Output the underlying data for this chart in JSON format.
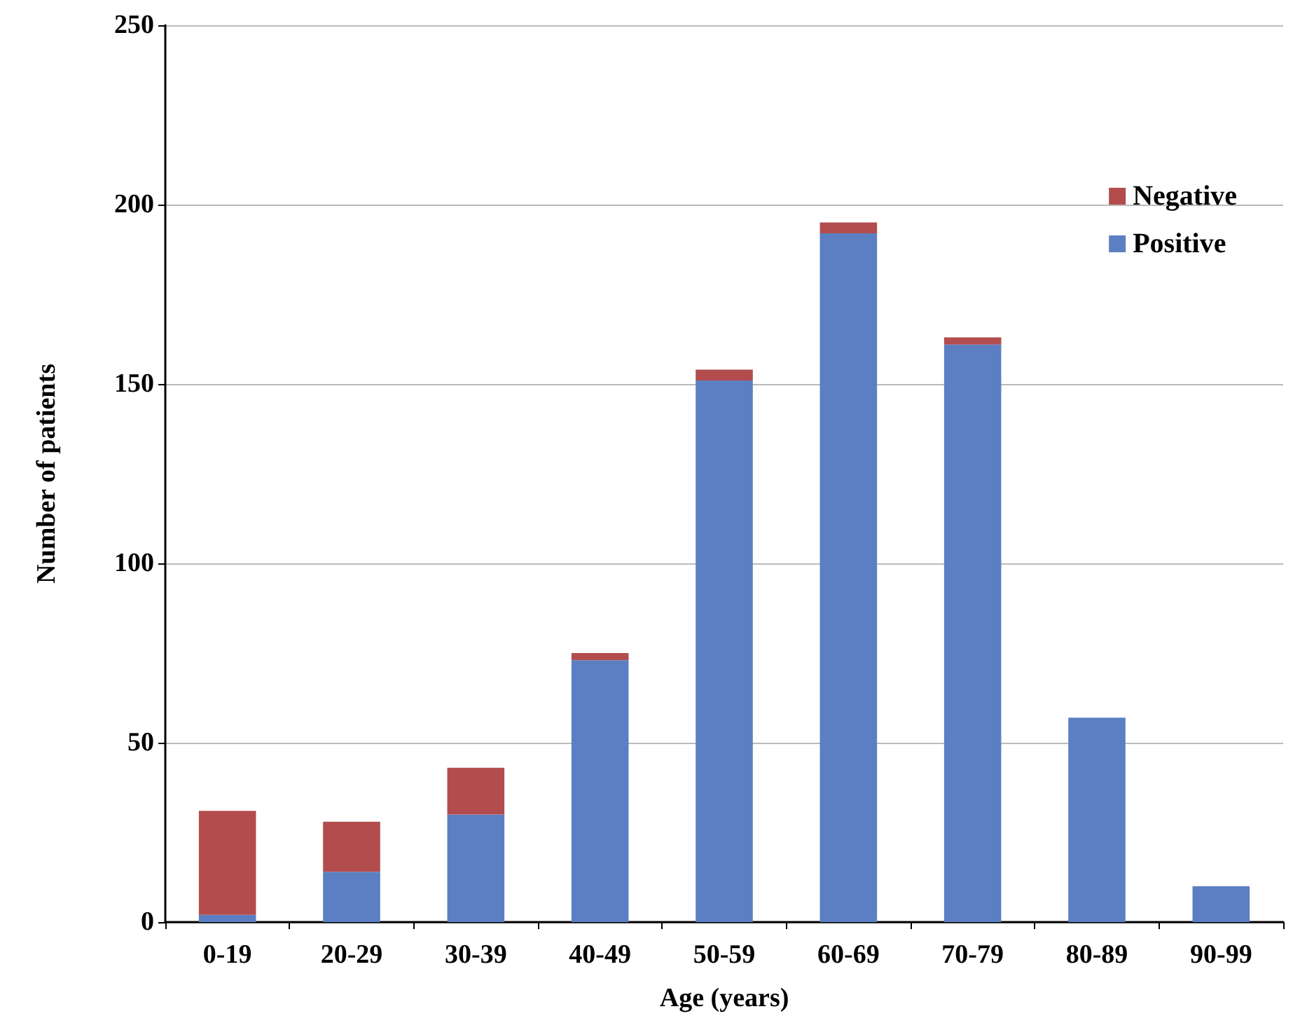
{
  "chart_data": {
    "type": "bar",
    "stacked": true,
    "xlabel": "Age (years)",
    "ylabel": "Number of patients",
    "categories": [
      "0-19",
      "20-29",
      "30-39",
      "40-49",
      "50-59",
      "60-69",
      "70-79",
      "80-89",
      "90-99"
    ],
    "series": [
      {
        "name": "Positive",
        "color": "#5b7fc2",
        "values": [
          2,
          14,
          30,
          73,
          151,
          192,
          161,
          57,
          10
        ]
      },
      {
        "name": "Negative",
        "color": "#b24c4d",
        "values": [
          29,
          14,
          13,
          2,
          3,
          3,
          2,
          0,
          0
        ]
      }
    ],
    "ylim": [
      0,
      250
    ],
    "yticks": [
      0,
      50,
      100,
      150,
      200,
      250
    ],
    "grid": "y",
    "legend": "top right"
  }
}
